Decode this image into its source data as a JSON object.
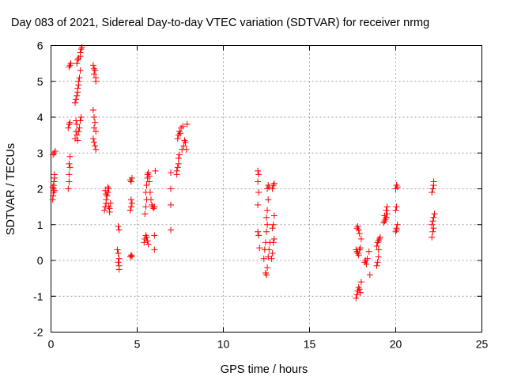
{
  "chart_data": {
    "type": "scatter",
    "title": "Day 083 of 2021, Sidereal Day-to-day VTEC variation (SDTVAR) for receiver nrmg",
    "xlabel": "GPS time / hours",
    "ylabel": "SDTVAR / TECUs",
    "xlim": [
      0,
      25
    ],
    "ylim": [
      -2,
      6
    ],
    "xticks": [
      0,
      5,
      10,
      15,
      20,
      25
    ],
    "yticks": [
      -2,
      -1,
      0,
      1,
      2,
      3,
      4,
      5,
      6
    ],
    "grid": true,
    "marker": "+",
    "colors": {
      "marker": "#ff0000",
      "grid": "#a0a0a0",
      "axis": "#000000"
    },
    "series": [
      {
        "name": "SDTVAR",
        "points": [
          [
            0.1,
            1.7
          ],
          [
            0.12,
            1.8
          ],
          [
            0.15,
            1.9
          ],
          [
            0.15,
            2.0
          ],
          [
            0.15,
            2.1
          ],
          [
            0.17,
            2.2
          ],
          [
            0.2,
            2.3
          ],
          [
            0.2,
            2.4
          ],
          [
            0.1,
            2.05
          ],
          [
            0.2,
            1.95
          ],
          [
            0.12,
            2.95
          ],
          [
            0.18,
            3.0
          ],
          [
            0.25,
            3.05
          ],
          [
            1.0,
            2.0
          ],
          [
            1.05,
            2.2
          ],
          [
            1.05,
            2.4
          ],
          [
            1.1,
            2.6
          ],
          [
            1.05,
            2.7
          ],
          [
            1.1,
            2.9
          ],
          [
            1.0,
            3.7
          ],
          [
            1.05,
            3.8
          ],
          [
            1.1,
            3.85
          ],
          [
            1.05,
            5.4
          ],
          [
            1.1,
            5.45
          ],
          [
            1.15,
            5.5
          ],
          [
            1.4,
            3.4
          ],
          [
            1.45,
            3.6
          ],
          [
            1.5,
            3.8
          ],
          [
            1.45,
            3.9
          ],
          [
            1.4,
            4.4
          ],
          [
            1.45,
            4.5
          ],
          [
            1.5,
            4.6
          ],
          [
            1.55,
            4.7
          ],
          [
            1.55,
            4.8
          ],
          [
            1.6,
            4.9
          ],
          [
            1.6,
            5.0
          ],
          [
            1.65,
            5.1
          ],
          [
            1.7,
            5.3
          ],
          [
            1.5,
            5.5
          ],
          [
            1.55,
            5.6
          ],
          [
            1.6,
            5.65
          ],
          [
            1.7,
            5.7
          ],
          [
            1.7,
            5.8
          ],
          [
            1.75,
            5.9
          ],
          [
            1.8,
            5.95
          ],
          [
            1.5,
            3.5
          ],
          [
            1.6,
            3.6
          ],
          [
            1.65,
            3.7
          ],
          [
            1.7,
            3.9
          ],
          [
            1.75,
            4.0
          ],
          [
            1.55,
            3.35
          ],
          [
            2.45,
            5.45
          ],
          [
            2.5,
            5.35
          ],
          [
            2.55,
            5.3
          ],
          [
            2.5,
            5.2
          ],
          [
            2.6,
            5.1
          ],
          [
            2.6,
            5.0
          ],
          [
            2.45,
            4.2
          ],
          [
            2.5,
            4.0
          ],
          [
            2.55,
            3.85
          ],
          [
            2.5,
            3.7
          ],
          [
            2.6,
            3.6
          ],
          [
            2.45,
            3.4
          ],
          [
            2.5,
            3.3
          ],
          [
            2.55,
            3.2
          ],
          [
            2.6,
            3.1
          ],
          [
            3.1,
            1.4
          ],
          [
            3.15,
            1.5
          ],
          [
            3.2,
            1.6
          ],
          [
            3.2,
            1.7
          ],
          [
            3.25,
            1.8
          ],
          [
            3.3,
            1.9
          ],
          [
            3.35,
            2.0
          ],
          [
            3.3,
            2.05
          ],
          [
            3.15,
            1.95
          ],
          [
            3.2,
            1.85
          ],
          [
            3.35,
            1.5
          ],
          [
            3.4,
            1.45
          ],
          [
            3.4,
            1.35
          ],
          [
            3.45,
            1.6
          ],
          [
            3.9,
            0.95
          ],
          [
            3.95,
            0.85
          ],
          [
            3.85,
            0.3
          ],
          [
            3.9,
            0.2
          ],
          [
            3.95,
            0.05
          ],
          [
            3.9,
            -0.05
          ],
          [
            3.95,
            -0.15
          ],
          [
            3.95,
            -0.25
          ],
          [
            4.6,
            0.1
          ],
          [
            4.65,
            0.15
          ],
          [
            4.7,
            0.12
          ],
          [
            4.6,
            1.4
          ],
          [
            4.65,
            1.5
          ],
          [
            4.7,
            1.6
          ],
          [
            4.65,
            1.7
          ],
          [
            4.6,
            2.25
          ],
          [
            4.7,
            2.3
          ],
          [
            4.65,
            2.2
          ],
          [
            5.4,
            0.5
          ],
          [
            5.45,
            0.6
          ],
          [
            5.5,
            0.7
          ],
          [
            5.55,
            0.65
          ],
          [
            5.6,
            0.55
          ],
          [
            5.65,
            0.45
          ],
          [
            5.45,
            1.3
          ],
          [
            5.5,
            1.5
          ],
          [
            5.55,
            1.7
          ],
          [
            5.5,
            1.9
          ],
          [
            5.55,
            2.1
          ],
          [
            5.6,
            2.3
          ],
          [
            5.6,
            2.4
          ],
          [
            5.65,
            2.45
          ],
          [
            5.7,
            2.35
          ],
          [
            5.7,
            2.2
          ],
          [
            5.75,
            1.9
          ],
          [
            5.8,
            1.7
          ],
          [
            5.85,
            1.55
          ],
          [
            5.9,
            1.5
          ],
          [
            5.95,
            1.45
          ],
          [
            6.0,
            0.3
          ],
          [
            6.0,
            0.7
          ],
          [
            6.05,
            2.5
          ],
          [
            6.0,
            1.5
          ],
          [
            6.95,
            0.85
          ],
          [
            6.95,
            1.55
          ],
          [
            6.95,
            2.0
          ],
          [
            6.95,
            2.45
          ],
          [
            7.3,
            2.5
          ],
          [
            7.35,
            2.6
          ],
          [
            7.4,
            2.7
          ],
          [
            7.4,
            2.85
          ],
          [
            7.35,
            3.4
          ],
          [
            7.4,
            3.5
          ],
          [
            7.45,
            3.6
          ],
          [
            7.5,
            3.55
          ],
          [
            7.55,
            3.7
          ],
          [
            7.65,
            3.75
          ],
          [
            7.6,
            3.1
          ],
          [
            7.7,
            3.2
          ],
          [
            7.75,
            3.35
          ],
          [
            7.8,
            3.3
          ],
          [
            7.85,
            3.1
          ],
          [
            7.9,
            3.8
          ],
          [
            7.3,
            2.4
          ],
          [
            7.45,
            2.95
          ],
          [
            12.0,
            2.5
          ],
          [
            12.05,
            2.4
          ],
          [
            12.0,
            2.2
          ],
          [
            12.05,
            1.9
          ],
          [
            12.0,
            1.55
          ],
          [
            12.0,
            0.8
          ],
          [
            12.05,
            0.7
          ],
          [
            12.1,
            0.35
          ],
          [
            12.35,
            0.05
          ],
          [
            12.4,
            0.3
          ],
          [
            12.45,
            0.5
          ],
          [
            12.5,
            0.8
          ],
          [
            12.55,
            1.0
          ],
          [
            12.5,
            1.2
          ],
          [
            12.55,
            1.4
          ],
          [
            12.6,
            1.7
          ],
          [
            12.55,
            2.0
          ],
          [
            12.6,
            2.1
          ],
          [
            12.65,
            2.05
          ],
          [
            12.45,
            -0.35
          ],
          [
            12.5,
            -0.4
          ],
          [
            12.55,
            -0.2
          ],
          [
            12.6,
            0.1
          ],
          [
            12.65,
            0.3
          ],
          [
            12.7,
            0.5
          ],
          [
            12.8,
            0.05
          ],
          [
            12.85,
            0.2
          ],
          [
            12.9,
            0.5
          ],
          [
            12.95,
            0.6
          ],
          [
            12.85,
            0.9
          ],
          [
            12.9,
            1.0
          ],
          [
            12.95,
            1.25
          ],
          [
            12.85,
            2.0
          ],
          [
            12.9,
            2.1
          ],
          [
            12.95,
            2.15
          ],
          [
            17.7,
            -1.05
          ],
          [
            17.75,
            -0.95
          ],
          [
            17.8,
            -0.85
          ],
          [
            17.85,
            -0.75
          ],
          [
            17.9,
            -0.8
          ],
          [
            17.95,
            -0.9
          ],
          [
            18.0,
            -0.6
          ],
          [
            17.7,
            0.3
          ],
          [
            17.75,
            0.25
          ],
          [
            17.8,
            0.2
          ],
          [
            17.85,
            0.15
          ],
          [
            17.9,
            0.3
          ],
          [
            17.95,
            0.35
          ],
          [
            17.75,
            0.9
          ],
          [
            17.8,
            0.95
          ],
          [
            17.85,
            0.85
          ],
          [
            17.9,
            0.75
          ],
          [
            18.0,
            0.6
          ],
          [
            18.2,
            -0.05
          ],
          [
            18.25,
            0.0
          ],
          [
            18.3,
            -0.1
          ],
          [
            18.35,
            0.05
          ],
          [
            18.45,
            0.25
          ],
          [
            18.5,
            -0.4
          ],
          [
            18.9,
            -0.15
          ],
          [
            18.95,
            -0.05
          ],
          [
            19.0,
            0.1
          ],
          [
            18.9,
            0.4
          ],
          [
            18.95,
            0.5
          ],
          [
            19.0,
            0.55
          ],
          [
            19.05,
            0.6
          ],
          [
            19.1,
            0.65
          ],
          [
            19.0,
            0.3
          ],
          [
            19.3,
            1.05
          ],
          [
            19.35,
            1.1
          ],
          [
            19.4,
            1.15
          ],
          [
            19.45,
            1.2
          ],
          [
            19.5,
            1.3
          ],
          [
            19.45,
            1.4
          ],
          [
            19.5,
            1.5
          ],
          [
            19.35,
            1.25
          ],
          [
            20.0,
            0.8
          ],
          [
            20.05,
            0.9
          ],
          [
            20.1,
            1.0
          ],
          [
            20.05,
            0.85
          ],
          [
            20.0,
            1.4
          ],
          [
            20.05,
            1.5
          ],
          [
            20.0,
            2.0
          ],
          [
            20.05,
            2.1
          ],
          [
            20.1,
            2.05
          ],
          [
            22.1,
            0.65
          ],
          [
            22.15,
            0.8
          ],
          [
            22.2,
            0.9
          ],
          [
            22.1,
            1.0
          ],
          [
            22.15,
            1.1
          ],
          [
            22.2,
            1.2
          ],
          [
            22.25,
            1.3
          ],
          [
            22.1,
            1.9
          ],
          [
            22.15,
            2.0
          ],
          [
            22.2,
            2.1
          ],
          [
            22.2,
            2.2
          ]
        ]
      }
    ]
  }
}
